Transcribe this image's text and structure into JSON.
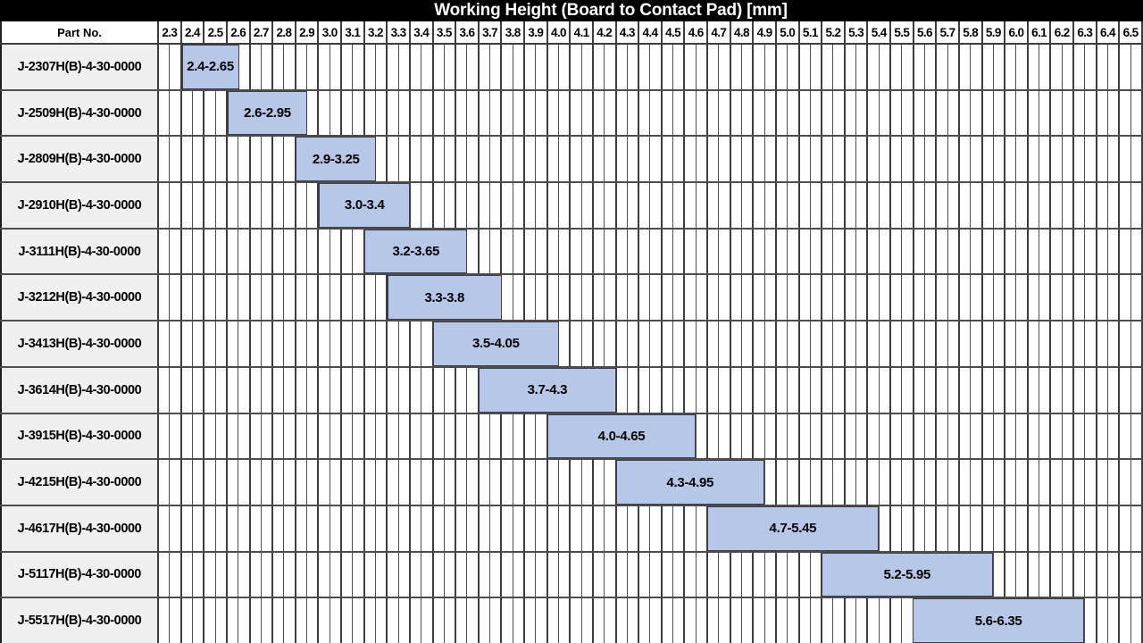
{
  "labels": {
    "part_col_header": "Part No."
  },
  "colors": {
    "title_bg": "#000000",
    "title_fg": "#ffffff",
    "bar_fill": "#b6c7e8",
    "bar_border": "#3a3f4a",
    "part_cell_bg": "#f0f0f0",
    "grid_line": "#4f4f4f",
    "grid_line_major": "#3c3c3c"
  },
  "chart_data": {
    "type": "bar",
    "variant": "horizontal-range-gantt",
    "title": "Working Height (Board to Contact Pad) [mm]",
    "xlim": [
      2.3,
      6.6
    ],
    "tick_step": 0.1,
    "minor_tick_step": 0.05,
    "grid": true,
    "tick_labels": [
      "2.3",
      "2.4",
      "2.5",
      "2.6",
      "2.7",
      "2.8",
      "2.9",
      "3.0",
      "3.1",
      "3.2",
      "3.3",
      "3.4",
      "3.5",
      "3.6",
      "3.7",
      "3.8",
      "3.9",
      "4.0",
      "4.1",
      "4.2",
      "4.3",
      "4.4",
      "4.5",
      "4.6",
      "4.7",
      "4.8",
      "4.9",
      "5.0",
      "5.1",
      "5.2",
      "5.3",
      "5.4",
      "5.5",
      "5.6",
      "5.7",
      "5.8",
      "5.9",
      "6.0",
      "6.1",
      "6.2",
      "6.3",
      "6.4",
      "6.5"
    ],
    "categories": [
      "J-2307H(B)-4-30-0000",
      "J-2509H(B)-4-30-0000",
      "J-2809H(B)-4-30-0000",
      "J-2910H(B)-4-30-0000",
      "J-3111H(B)-4-30-0000",
      "J-3212H(B)-4-30-0000",
      "J-3413H(B)-4-30-0000",
      "J-3614H(B)-4-30-0000",
      "J-3915H(B)-4-30-0000",
      "J-4215H(B)-4-30-0000",
      "J-4617H(B)-4-30-0000",
      "J-5117H(B)-4-30-0000",
      "J-5517H(B)-4-30-0000"
    ],
    "ranges": [
      [
        2.4,
        2.65
      ],
      [
        2.6,
        2.95
      ],
      [
        2.9,
        3.25
      ],
      [
        3.0,
        3.4
      ],
      [
        3.2,
        3.65
      ],
      [
        3.3,
        3.8
      ],
      [
        3.5,
        4.05
      ],
      [
        3.7,
        4.3
      ],
      [
        4.0,
        4.65
      ],
      [
        4.3,
        4.95
      ],
      [
        4.7,
        5.45
      ],
      [
        5.2,
        5.95
      ],
      [
        5.6,
        6.35
      ]
    ],
    "bar_labels": [
      "2.4-2.65",
      "2.6-2.95",
      "2.9-3.25",
      "3.0-3.4",
      "3.2-3.65",
      "3.3-3.8",
      "3.5-4.05",
      "3.7-4.3",
      "4.0-4.65",
      "4.3-4.95",
      "4.7-5.45",
      "5.2-5.95",
      "5.6-6.35"
    ]
  }
}
